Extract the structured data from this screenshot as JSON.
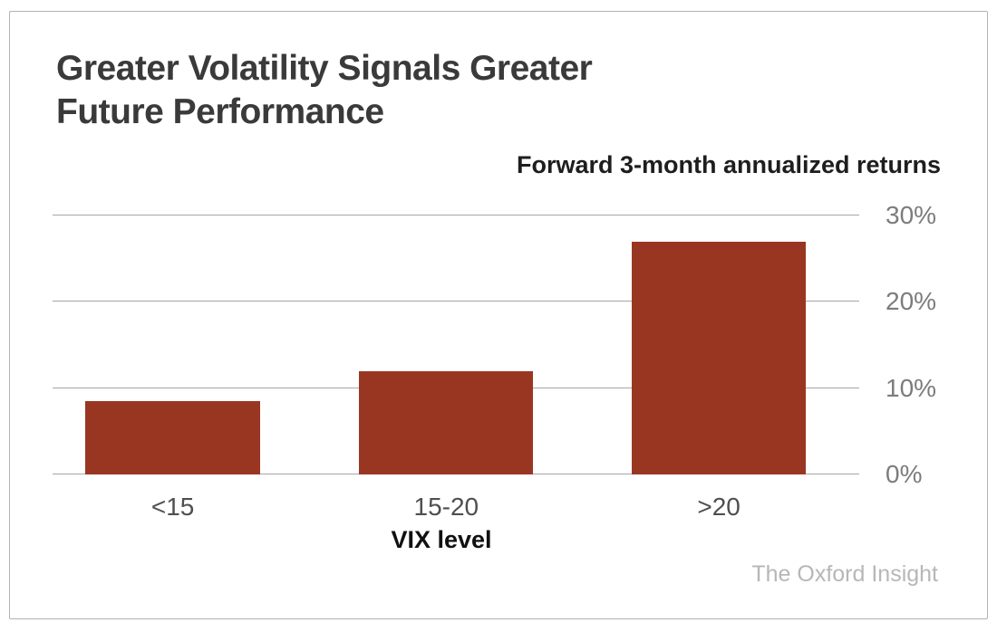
{
  "display": {
    "title_lines": [
      "Greater Volatility Signals Greater",
      "Future Performance"
    ]
  },
  "chart_data": {
    "type": "bar",
    "title": "Greater Volatility Signals Greater Future Performance",
    "subtitle": "Forward 3-month annualized returns",
    "categories": [
      "<15",
      "15-20",
      ">20"
    ],
    "values": [
      8.5,
      12,
      27
    ],
    "value_unit": "percent",
    "xlabel": "VIX level",
    "ylabel": "",
    "ylim": [
      0,
      30
    ],
    "yticks": [
      0,
      10,
      20,
      30
    ],
    "ytick_labels": [
      "0%",
      "10%",
      "20%",
      "30%"
    ],
    "grid": true,
    "legend": false,
    "bar_color": "#993622",
    "gridline_color": "#a6a6a6",
    "attribution": "The Oxford Insight"
  }
}
